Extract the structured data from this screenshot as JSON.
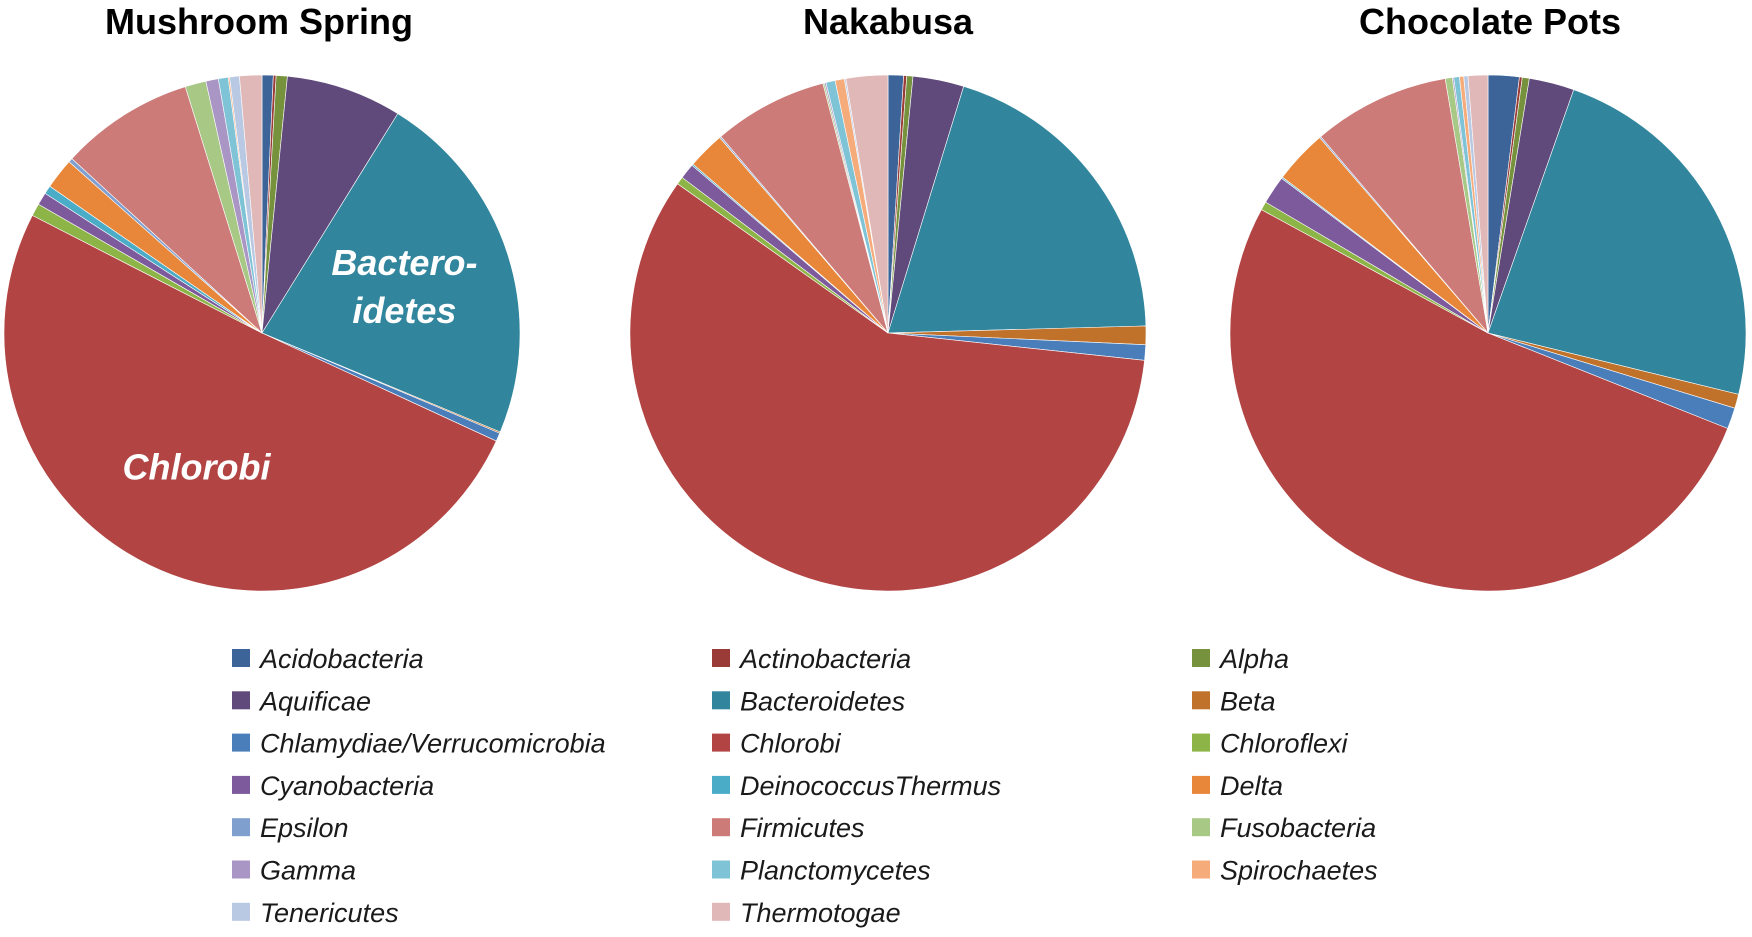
{
  "chart_data": {
    "type": "pie",
    "legend_position": "bottom",
    "categories": [
      "Acidobacteria",
      "Actinobacteria",
      "Alpha",
      "Aquificae",
      "Bacteroidetes",
      "Beta",
      "Chlamydiae/Verrucomicrobia",
      "Chlorobi",
      "Chloroflexi",
      "Cyanobacteria",
      "DeinococcusThermus",
      "Delta",
      "Epsilon",
      "Firmicutes",
      "Fusobacteria",
      "Gamma",
      "Planctomycetes",
      "Spirochaetes",
      "Tenericutes",
      "Thermotogae"
    ],
    "colors": [
      "#3c6499",
      "#9a3b37",
      "#76923c",
      "#604a7b",
      "#31859c",
      "#c0722b",
      "#4a7ebb",
      "#b24543",
      "#8db446",
      "#7d5a9b",
      "#4aacc6",
      "#e8873a",
      "#7f9fcf",
      "#cd7b78",
      "#a8c886",
      "#a996c4",
      "#7fc3d7",
      "#f6ab7a",
      "#b9c9e3",
      "#e0b8b7"
    ],
    "pies": [
      {
        "title": "Mushroom Spring",
        "values": [
          0.8,
          0.2,
          0.8,
          8.3,
          25.7,
          0.1,
          0.6,
          58.0,
          0.9,
          0.9,
          0.6,
          2.2,
          0.3,
          9.6,
          1.5,
          0.9,
          0.7,
          0.1,
          0.7,
          1.6
        ],
        "labels": [
          {
            "category": "Bacteroidetes",
            "lines": [
              "Bactero-",
              "idetes"
            ]
          },
          {
            "category": "Chlorobi",
            "lines": [
              "Chlorobi"
            ]
          }
        ]
      },
      {
        "title": "Nakabusa",
        "values": [
          1.0,
          0.2,
          0.4,
          3.3,
          20.5,
          1.2,
          1.0,
          60.1,
          0.5,
          1.0,
          0.1,
          2.4,
          0.1,
          7.4,
          0.1,
          0.1,
          0.6,
          0.6,
          0.1,
          2.7
        ],
        "labels": []
      },
      {
        "title": "Chocolate Pots",
        "values": [
          2.2,
          0.2,
          0.5,
          3.2,
          26.5,
          1.0,
          1.5,
          58.7,
          0.6,
          2.0,
          0.1,
          3.8,
          0.1,
          9.7,
          0.5,
          0.1,
          0.4,
          0.3,
          0.3,
          1.4
        ],
        "labels": []
      }
    ]
  }
}
